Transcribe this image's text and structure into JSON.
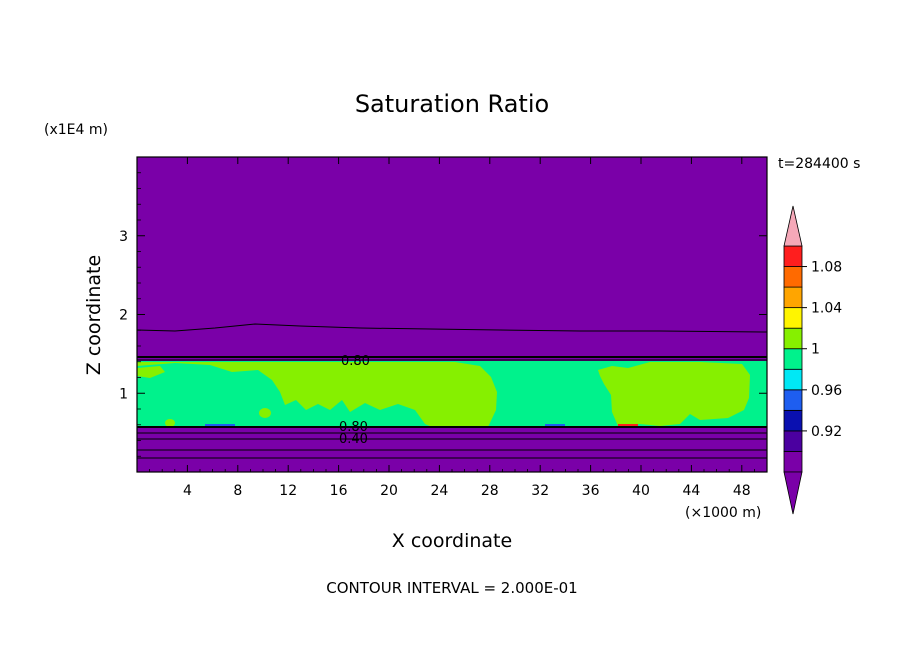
{
  "chart_data": {
    "type": "contour",
    "title": "Saturation Ratio",
    "xlabel": "X coordinate",
    "ylabel": "Z coordinate",
    "x_unit": "(×1000 m)",
    "y_unit": "(x1E4 m)",
    "time_label": "t=284400 s",
    "footer": "CONTOUR INTERVAL = 2.000E-01",
    "xlim": [
      0,
      50
    ],
    "ylim": [
      0,
      4
    ],
    "x_ticks": [
      4,
      8,
      12,
      16,
      20,
      24,
      28,
      32,
      36,
      40,
      44,
      48
    ],
    "y_ticks": [
      1,
      2,
      3
    ],
    "contour_line_labels": [
      "0.80",
      "0.80",
      "0.40"
    ],
    "colorbar": {
      "ticks": [
        "0.92",
        "0.96",
        "1",
        "1.04",
        "1.08"
      ],
      "bins": [
        {
          "color": "#7a00a8"
        },
        {
          "color": "#4b00a0"
        },
        {
          "color": "#0a10b0"
        },
        {
          "color": "#1e5ef0"
        },
        {
          "color": "#00e8f5"
        },
        {
          "color": "#00f28c"
        },
        {
          "color": "#86f000"
        },
        {
          "color": "#fff500"
        },
        {
          "color": "#ffa500"
        },
        {
          "color": "#ff6a00"
        },
        {
          "color": "#ff1e1e"
        }
      ],
      "under_color": "#7a00a8",
      "over_color": "#f5a8b8"
    }
  }
}
